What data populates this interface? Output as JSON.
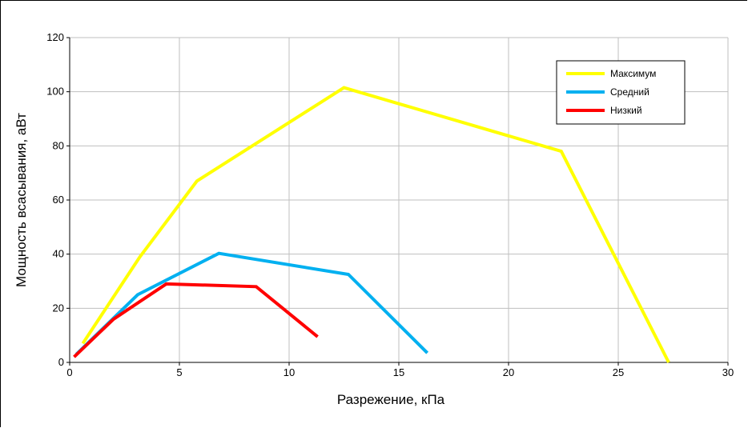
{
  "chart_data": {
    "type": "line",
    "title": "",
    "xlabel": "Разрежение, кПа",
    "ylabel": "Мощность всасывания, аВт",
    "xlim": [
      0,
      30
    ],
    "ylim": [
      0,
      120
    ],
    "x_ticks": [
      0,
      5,
      10,
      15,
      20,
      25,
      30
    ],
    "y_ticks": [
      0,
      20,
      40,
      60,
      80,
      100,
      120
    ],
    "grid": true,
    "legend_position": "top-right",
    "series": [
      {
        "name": "Максимум",
        "color": "#ffff00",
        "points": [
          [
            0.6,
            7
          ],
          [
            3.2,
            39
          ],
          [
            5.8,
            67
          ],
          [
            12.5,
            101.5
          ],
          [
            22.4,
            78
          ],
          [
            27.3,
            0
          ]
        ]
      },
      {
        "name": "Средний",
        "color": "#00b0f0",
        "points": [
          [
            0.3,
            3
          ],
          [
            3.1,
            25
          ],
          [
            6.8,
            40.3
          ],
          [
            12.7,
            32.5
          ],
          [
            16.3,
            3.5
          ]
        ]
      },
      {
        "name": "Низкий",
        "color": "#ff0000",
        "points": [
          [
            0.2,
            2
          ],
          [
            2.0,
            16
          ],
          [
            4.4,
            29
          ],
          [
            8.5,
            28
          ],
          [
            11.3,
            9.5
          ]
        ]
      }
    ]
  }
}
